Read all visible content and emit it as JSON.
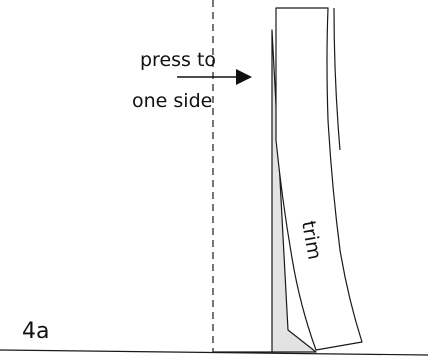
{
  "labels": {
    "instruction_line1": "press to",
    "instruction_line2": "one side",
    "trim": "trim",
    "step": "4a"
  },
  "colors": {
    "stroke": "#1a1a1a",
    "seam_fill": "#e3e3e3",
    "background": "#ffffff"
  }
}
